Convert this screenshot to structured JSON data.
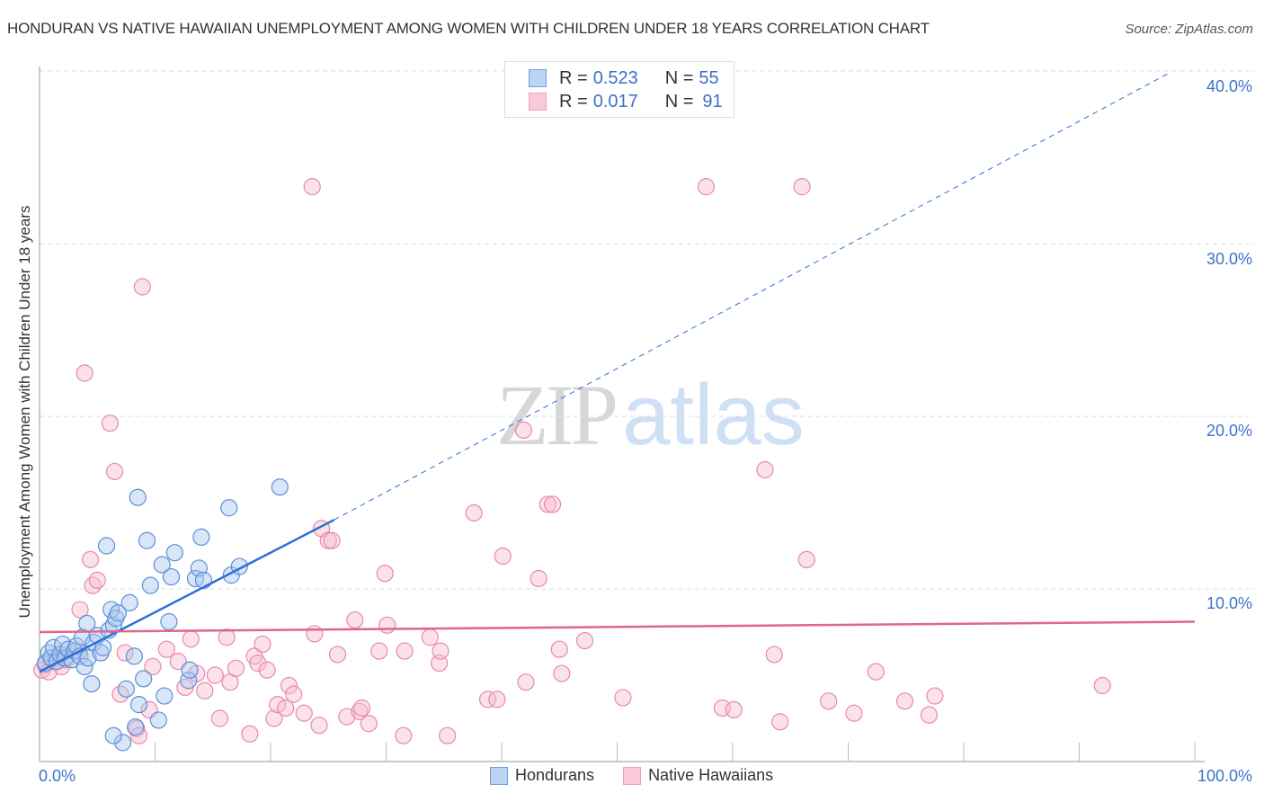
{
  "header": {
    "title": "HONDURAN VS NATIVE HAWAIIAN UNEMPLOYMENT AMONG WOMEN WITH CHILDREN UNDER 18 YEARS CORRELATION CHART",
    "source": "Source: ZipAtlas.com"
  },
  "watermark": {
    "zip": "ZIP",
    "atlas": "atlas"
  },
  "legend": {
    "rows": [
      {
        "r_label": "R = ",
        "r_value": "0.523",
        "n_label": "N = ",
        "n_value": "55",
        "color": "#6fa0e0"
      },
      {
        "r_label": "R = ",
        "r_value": "0.017",
        "n_label": "N = ",
        "n_value": "91",
        "color": "#f0a0bc"
      }
    ]
  },
  "bottom_legend": {
    "series1": "Hondurans",
    "series2": "Native Hawaiians"
  },
  "axes": {
    "ylabel": "Unemployment Among Women with Children Under 18 years",
    "x_min_label": "0.0%",
    "x_max_label": "100.0%",
    "y_ticks": [
      "40.0%",
      "30.0%",
      "20.0%",
      "10.0%"
    ]
  },
  "colors": {
    "hondurans_fill": "#a9c8f0",
    "hondurans_stroke": "#5a8fd8",
    "hondurans_line": "#2a6fd6",
    "hawaiians_fill": "#f7bdd0",
    "hawaiians_stroke": "#e889a8",
    "hawaiians_line": "#e0668f",
    "tick_text": "#3b72c8"
  },
  "chart_data": {
    "type": "scatter",
    "title": "HONDURAN VS NATIVE HAWAIIAN UNEMPLOYMENT AMONG WOMEN WITH CHILDREN UNDER 18 YEARS CORRELATION CHART",
    "xlabel": "",
    "ylabel": "Unemployment Among Women with Children Under 18 years",
    "xlim": [
      0,
      100
    ],
    "ylim": [
      0,
      40
    ],
    "x_tick_labels": [
      "0.0%",
      "100.0%"
    ],
    "y_tick_labels": [
      "10.0%",
      "20.0%",
      "30.0%",
      "40.0%"
    ],
    "grid": true,
    "legend_position": "top-center",
    "series": [
      {
        "name": "Hondurans",
        "R": 0.523,
        "N": 55,
        "trend": {
          "x0": 0,
          "y0": 5.2,
          "x1": 25.5,
          "y1": 14.0,
          "extended_to": [
            100,
            40.0
          ],
          "style": "solid then dashed"
        },
        "points": [
          [
            0.5,
            5.7
          ],
          [
            0.8,
            6.3
          ],
          [
            1.0,
            6.0
          ],
          [
            1.2,
            6.6
          ],
          [
            1.5,
            5.8
          ],
          [
            1.8,
            6.2
          ],
          [
            2.0,
            6.8
          ],
          [
            2.2,
            6.0
          ],
          [
            2.5,
            6.5
          ],
          [
            2.8,
            5.9
          ],
          [
            3.0,
            6.4
          ],
          [
            3.2,
            6.7
          ],
          [
            3.5,
            6.1
          ],
          [
            3.7,
            7.2
          ],
          [
            3.9,
            5.5
          ],
          [
            4.2,
            6.0
          ],
          [
            4.5,
            4.5
          ],
          [
            4.1,
            8.0
          ],
          [
            4.7,
            6.9
          ],
          [
            5.0,
            7.3
          ],
          [
            5.3,
            6.3
          ],
          [
            5.5,
            6.6
          ],
          [
            5.8,
            12.5
          ],
          [
            6.0,
            7.6
          ],
          [
            6.2,
            8.8
          ],
          [
            6.4,
            7.9
          ],
          [
            6.6,
            8.3
          ],
          [
            6.8,
            8.6
          ],
          [
            7.2,
            1.1
          ],
          [
            7.5,
            4.2
          ],
          [
            7.8,
            9.2
          ],
          [
            8.2,
            6.1
          ],
          [
            8.5,
            15.3
          ],
          [
            8.6,
            3.3
          ],
          [
            9.0,
            4.8
          ],
          [
            9.3,
            12.8
          ],
          [
            9.6,
            10.2
          ],
          [
            10.3,
            2.4
          ],
          [
            10.6,
            11.4
          ],
          [
            10.8,
            3.8
          ],
          [
            11.2,
            8.1
          ],
          [
            11.4,
            10.7
          ],
          [
            11.7,
            12.1
          ],
          [
            12.9,
            4.7
          ],
          [
            13.0,
            5.3
          ],
          [
            13.5,
            10.6
          ],
          [
            13.8,
            11.2
          ],
          [
            14.0,
            13.0
          ],
          [
            14.2,
            10.5
          ],
          [
            16.4,
            14.7
          ],
          [
            16.6,
            10.8
          ],
          [
            17.3,
            11.3
          ],
          [
            20.8,
            15.9
          ],
          [
            6.4,
            1.5
          ],
          [
            8.3,
            2.0
          ]
        ]
      },
      {
        "name": "Native Hawaiians",
        "R": 0.017,
        "N": 91,
        "trend": {
          "x0": 0,
          "y0": 7.5,
          "x1": 100,
          "y1": 8.1,
          "style": "solid"
        },
        "points": [
          [
            0.2,
            5.3
          ],
          [
            0.5,
            5.6
          ],
          [
            0.8,
            5.2
          ],
          [
            1.2,
            5.8
          ],
          [
            1.5,
            6.0
          ],
          [
            1.9,
            5.5
          ],
          [
            2.3,
            5.9
          ],
          [
            3.4,
            6.4
          ],
          [
            3.5,
            8.8
          ],
          [
            3.9,
            22.5
          ],
          [
            4.4,
            11.7
          ],
          [
            4.6,
            10.2
          ],
          [
            5.0,
            10.5
          ],
          [
            6.1,
            19.6
          ],
          [
            6.5,
            16.8
          ],
          [
            7.0,
            3.9
          ],
          [
            7.4,
            6.3
          ],
          [
            8.4,
            1.9
          ],
          [
            8.6,
            1.5
          ],
          [
            8.9,
            27.5
          ],
          [
            9.5,
            3.0
          ],
          [
            9.8,
            5.5
          ],
          [
            11.0,
            6.5
          ],
          [
            12.0,
            5.8
          ],
          [
            12.6,
            4.3
          ],
          [
            13.1,
            7.1
          ],
          [
            13.6,
            5.1
          ],
          [
            14.3,
            4.1
          ],
          [
            15.2,
            5.0
          ],
          [
            15.6,
            2.5
          ],
          [
            16.2,
            7.2
          ],
          [
            16.5,
            4.6
          ],
          [
            17.0,
            5.4
          ],
          [
            18.2,
            1.6
          ],
          [
            18.6,
            6.1
          ],
          [
            18.9,
            5.7
          ],
          [
            19.3,
            6.8
          ],
          [
            19.7,
            5.3
          ],
          [
            20.3,
            2.5
          ],
          [
            20.6,
            3.3
          ],
          [
            21.3,
            3.1
          ],
          [
            21.6,
            4.4
          ],
          [
            22.0,
            3.9
          ],
          [
            22.9,
            2.8
          ],
          [
            23.6,
            33.3
          ],
          [
            23.8,
            7.4
          ],
          [
            24.4,
            13.5
          ],
          [
            25.0,
            12.8
          ],
          [
            24.2,
            2.1
          ],
          [
            25.3,
            12.8
          ],
          [
            25.8,
            6.2
          ],
          [
            26.6,
            2.6
          ],
          [
            27.3,
            8.2
          ],
          [
            27.7,
            2.9
          ],
          [
            27.9,
            3.1
          ],
          [
            28.5,
            2.2
          ],
          [
            29.4,
            6.4
          ],
          [
            29.9,
            10.9
          ],
          [
            30.1,
            7.9
          ],
          [
            31.6,
            6.4
          ],
          [
            31.5,
            1.5
          ],
          [
            33.8,
            7.2
          ],
          [
            34.6,
            5.7
          ],
          [
            34.7,
            6.4
          ],
          [
            35.3,
            1.5
          ],
          [
            37.6,
            14.4
          ],
          [
            38.8,
            3.6
          ],
          [
            39.6,
            3.6
          ],
          [
            40.1,
            11.9
          ],
          [
            41.9,
            19.2
          ],
          [
            42.1,
            4.6
          ],
          [
            43.2,
            10.6
          ],
          [
            44.0,
            14.9
          ],
          [
            44.4,
            14.9
          ],
          [
            45.0,
            6.5
          ],
          [
            45.2,
            5.1
          ],
          [
            47.2,
            7.0
          ],
          [
            50.5,
            3.7
          ],
          [
            57.7,
            33.3
          ],
          [
            59.1,
            3.1
          ],
          [
            60.1,
            3.0
          ],
          [
            62.8,
            16.9
          ],
          [
            63.6,
            6.2
          ],
          [
            64.1,
            2.3
          ],
          [
            66.0,
            33.3
          ],
          [
            66.4,
            11.7
          ],
          [
            68.3,
            3.5
          ],
          [
            70.5,
            2.8
          ],
          [
            72.4,
            5.2
          ],
          [
            74.9,
            3.5
          ],
          [
            77.0,
            2.7
          ],
          [
            77.5,
            3.8
          ],
          [
            92.0,
            4.4
          ]
        ]
      }
    ]
  }
}
